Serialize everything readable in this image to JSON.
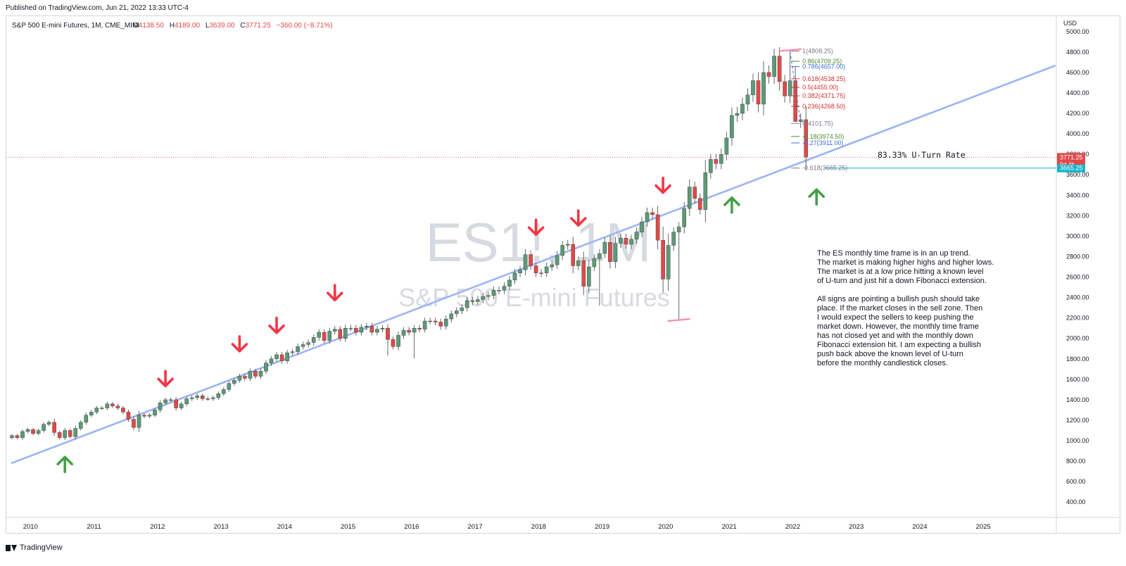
{
  "header": {
    "published": "Published on TradingView.com, Jun 21, 2022 13:33 UTC-4",
    "symbol_line": "S&P 500 E-mini Futures, 1M, CME_MINI",
    "ohlc": {
      "open_label": "O",
      "open": "4138.50",
      "high_label": "H",
      "high": "4189.00",
      "low_label": "L",
      "low": "3639.00",
      "close_label": "C",
      "close": "3771.25",
      "change": "−360.00 (−8.71%)"
    }
  },
  "watermark": {
    "ticker": "ES1!, 1M",
    "name": "S&P 500 E-mini Futures"
  },
  "footer": {
    "brand": "TradingView"
  },
  "colors": {
    "up": "#5b9a78",
    "down": "#e04a4a",
    "trendline": "#9db4f5",
    "arrow_down": "#f23645",
    "arrow_up": "#43a047",
    "price_tag": "#e04a4a",
    "fib_tag": "#12b5cb",
    "fib_green": "#4c8a2e",
    "fib_blue": "#3a6ed8",
    "fib_red": "#d32f2f",
    "fib_gray": "#787b86",
    "range_mark": "#f48fb1"
  },
  "price_scale": {
    "currency": "USD",
    "current_price": "3771.25",
    "countdown": "9d 4h",
    "fib_price": "3665.25"
  },
  "annotations": {
    "uturn_rate": "83.33% U-Turn Rate",
    "paragraph1": [
      "The ES monthly time frame is in an up trend.",
      "The market is making higher highs and higher lows.",
      "The market is at a low price hitting a known level",
      "of U-turn and just hit a down Fibonacci extension."
    ],
    "paragraph2": [
      "All signs are pointing a bullish push should take",
      "place. If the market closes in the sell zone. Then",
      "I would expect the sellers to keep pushing the",
      "market down. However, the monthly time frame",
      "has not closed yet and with the monthly down",
      "Fibonacci extension hit. I am expecting a bullish",
      "push back above the known level of U-turn",
      "before the monthly candlestick closes."
    ]
  },
  "chart_data": {
    "type": "candlestick",
    "title": "S&P 500 E-mini Futures, 1M, CME_MINI",
    "interval": "1M",
    "y_axis": {
      "side": "right",
      "unit": "USD",
      "ylim": [
        250,
        5150
      ],
      "ticks": [
        400,
        600,
        800,
        1000,
        1200,
        1400,
        1600,
        1800,
        2000,
        2200,
        2400,
        2600,
        2800,
        3000,
        3200,
        3400,
        3600,
        3800,
        4000,
        4200,
        4400,
        4600,
        4800,
        5000
      ],
      "tick_labels": [
        "400.00",
        "600.00",
        "800.00",
        "1000.00",
        "1200.00",
        "1400.00",
        "1600.00",
        "1800.00",
        "2000.00",
        "2200.00",
        "2400.00",
        "2600.00",
        "2800.00",
        "3000.00",
        "3200.00",
        "3400.00",
        "3600.00",
        "3800.00",
        "4000.00",
        "4200.00",
        "4400.00",
        "4600.00",
        "4800.00",
        "5000.00"
      ]
    },
    "x_axis": {
      "start_year_pos": 2009.62,
      "end_year_pos": 2026.15,
      "tick_years": [
        2010,
        2011,
        2012,
        2013,
        2014,
        2015,
        2016,
        2017,
        2018,
        2019,
        2020,
        2021,
        2022,
        2023,
        2024,
        2025
      ],
      "tick_labels": [
        "2010",
        "2011",
        "2012",
        "2013",
        "2014",
        "2015",
        "2016",
        "2017",
        "2018",
        "2019",
        "2020",
        "2021",
        "2022",
        "2023",
        "2024",
        "2025"
      ]
    },
    "grid": false,
    "candles": {
      "start": "2009-09",
      "closes": [
        1050,
        1030,
        1090,
        1110,
        1070,
        1100,
        1160,
        1180,
        1080,
        1030,
        1100,
        1040,
        1120,
        1180,
        1250,
        1280,
        1320,
        1320,
        1360,
        1340,
        1320,
        1280,
        1210,
        1130,
        1250,
        1240,
        1250,
        1300,
        1370,
        1400,
        1400,
        1320,
        1360,
        1410,
        1420,
        1440,
        1410,
        1410,
        1420,
        1460,
        1500,
        1560,
        1590,
        1630,
        1610,
        1680,
        1630,
        1680,
        1760,
        1800,
        1840,
        1780,
        1860,
        1870,
        1920,
        1940,
        1960,
        2010,
        2060,
        1980,
        2070,
        2090,
        2000,
        2100,
        2100,
        2060,
        2110,
        2120,
        2060,
        2090,
        2100,
        1990,
        1920,
        2030,
        2080,
        2060,
        2100,
        2090,
        2170,
        2170,
        2160,
        2120,
        2190,
        2240,
        2270,
        2300,
        2370,
        2360,
        2380,
        2410,
        2420,
        2470,
        2470,
        2510,
        2570,
        2640,
        2670,
        2820,
        2710,
        2640,
        2640,
        2700,
        2720,
        2810,
        2910,
        2920,
        2710,
        2760,
        2510,
        2700,
        2780,
        2830,
        2940,
        2750,
        2930,
        2980,
        2920,
        2970,
        3040,
        3140,
        3230,
        3210,
        2960,
        2580,
        2910,
        3040,
        3090,
        3270,
        3480,
        3370,
        3260,
        3620,
        3750,
        3710,
        3800,
        3960,
        4180,
        4200,
        4290,
        4380,
        4520,
        4290,
        4600,
        4560,
        4760,
        4510,
        4370,
        4520,
        4120,
        4138.5,
        3771.25
      ]
    },
    "trendline": {
      "p1": [
        "2009-09",
        782
      ],
      "p2": [
        "2026-02",
        4665
      ]
    },
    "range_marks": [
      {
        "date": "2021-12",
        "value": 4818
      },
      {
        "date": "2020-03",
        "value": 2180
      }
    ],
    "fibonacci": [
      {
        "label": "1(4808.25)",
        "value": 4808.25,
        "color": "gray"
      },
      {
        "label": "0.86(4709.25)",
        "value": 4709.25,
        "color": "green"
      },
      {
        "label": "0.786(4657.00)",
        "value": 4657.0,
        "color": "blue"
      },
      {
        "label": "0.618(4538.25)",
        "value": 4538.25,
        "color": "red"
      },
      {
        "label": "0.5(4455.00)",
        "value": 4455.0,
        "color": "red"
      },
      {
        "label": "0.382(4371.75)",
        "value": 4371.75,
        "color": "red"
      },
      {
        "label": "0.236(4268.50)",
        "value": 4268.5,
        "color": "red"
      },
      {
        "label": "0(4101.75)",
        "value": 4101.75,
        "color": "gray"
      },
      {
        "label": "-0.18(3974.50)",
        "value": 3974.5,
        "color": "green"
      },
      {
        "label": "-0.27(3911.00)",
        "value": 3911.0,
        "color": "blue"
      },
      {
        "label": "-0.618(3665.25)",
        "value": 3665.25,
        "color": "gray"
      }
    ],
    "down_arrows": [
      {
        "date": "2012-02",
        "value": 1590
      },
      {
        "date": "2013-04",
        "value": 1930
      },
      {
        "date": "2013-11",
        "value": 2110
      },
      {
        "date": "2014-10",
        "value": 2430
      },
      {
        "date": "2017-12",
        "value": 3070
      },
      {
        "date": "2018-08",
        "value": 3160
      },
      {
        "date": "2019-12",
        "value": 3480
      }
    ],
    "up_arrows": [
      {
        "date": "2010-07",
        "value": 785
      },
      {
        "date": "2021-01",
        "value": 3320
      },
      {
        "date": "2022-05",
        "value": 3400
      }
    ]
  }
}
